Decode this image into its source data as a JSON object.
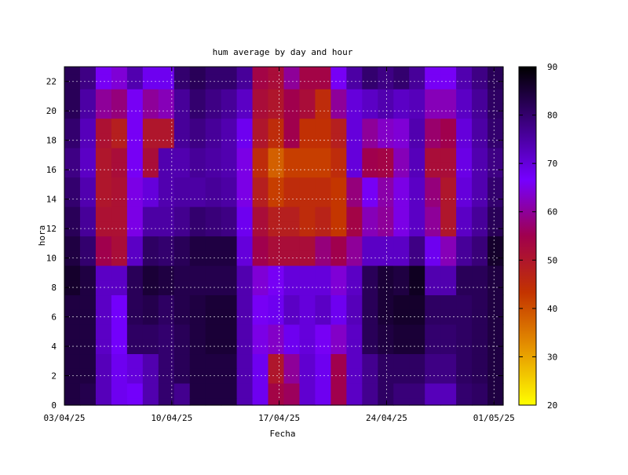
{
  "chart_data": {
    "type": "heatmap",
    "title": "hum average by day and hour",
    "xlabel": "Fecha",
    "ylabel": "hora",
    "x_start": "03/04/25",
    "x_end": "01/05/25",
    "x_tick_labels": [
      "03/04/25",
      "10/04/25",
      "17/04/25",
      "24/04/25",
      "01/05/25"
    ],
    "y_tick_labels": [
      "0",
      "2",
      "4",
      "6",
      "8",
      "10",
      "12",
      "14",
      "16",
      "18",
      "20",
      "22"
    ],
    "ylim": [
      0,
      23
    ],
    "grid": true,
    "colorbar": {
      "range": [
        20,
        90
      ],
      "tick_labels": [
        "20",
        "30",
        "40",
        "50",
        "60",
        "70",
        "80",
        "90"
      ],
      "palette": [
        "#ffff00",
        "#e69500",
        "#c33300",
        "#a0004d",
        "#7500ff",
        "#3c0080",
        "#000000"
      ]
    },
    "days": [
      "03/04",
      "04/04",
      "05/04",
      "06/04",
      "07/04",
      "08/04",
      "09/04",
      "10/04",
      "11/04",
      "12/04",
      "13/04",
      "14/04",
      "15/04",
      "16/04",
      "17/04",
      "18/04",
      "19/04",
      "20/04",
      "21/04",
      "22/04",
      "23/04",
      "24/04",
      "25/04",
      "26/04",
      "27/04",
      "28/04",
      "29/04",
      "30/04"
    ],
    "hours": [
      0,
      1,
      2,
      3,
      4,
      5,
      6,
      7,
      8,
      9,
      10,
      11,
      12,
      13,
      14,
      15,
      16,
      17,
      18,
      19,
      20,
      21,
      22,
      23
    ],
    "values": [
      [
        84,
        83,
        73,
        68,
        67,
        74,
        80,
        77,
        84,
        84,
        84,
        74,
        68,
        54,
        56,
        71,
        68,
        55,
        72,
        77,
        81,
        79,
        79,
        73,
        73,
        80,
        81,
        84
      ],
      [
        84,
        83,
        73,
        68,
        67,
        74,
        80,
        77,
        84,
        84,
        84,
        74,
        68,
        54,
        56,
        71,
        68,
        55,
        72,
        77,
        81,
        79,
        79,
        73,
        73,
        80,
        81,
        84
      ],
      [
        84,
        84,
        73,
        68,
        70,
        74,
        80,
        82,
        84,
        84,
        84,
        74,
        68,
        50,
        60,
        71,
        68,
        55,
        72,
        77,
        81,
        81,
        81,
        78,
        78,
        81,
        82,
        84
      ],
      [
        84,
        84,
        73,
        68,
        70,
        74,
        80,
        82,
        84,
        84,
        84,
        74,
        68,
        50,
        60,
        71,
        68,
        55,
        72,
        77,
        81,
        81,
        81,
        78,
        78,
        81,
        82,
        84
      ],
      [
        84,
        84,
        72,
        67,
        81,
        81,
        80,
        82,
        84,
        85,
        85,
        74,
        65,
        63,
        68,
        70,
        66,
        63,
        72,
        82,
        84,
        85,
        85,
        80,
        80,
        81,
        82,
        84
      ],
      [
        84,
        84,
        72,
        67,
        81,
        81,
        80,
        82,
        84,
        85,
        85,
        74,
        65,
        63,
        68,
        70,
        66,
        63,
        72,
        82,
        84,
        85,
        85,
        80,
        80,
        81,
        82,
        84
      ],
      [
        84,
        84,
        72,
        67,
        82,
        83,
        81,
        83,
        84,
        85,
        85,
        74,
        66,
        68,
        72,
        70,
        72,
        68,
        73,
        82,
        85,
        86,
        86,
        81,
        81,
        81,
        82,
        84
      ],
      [
        84,
        84,
        72,
        67,
        82,
        83,
        81,
        83,
        84,
        85,
        85,
        74,
        66,
        68,
        72,
        70,
        72,
        68,
        73,
        82,
        85,
        86,
        86,
        81,
        81,
        81,
        82,
        84
      ],
      [
        86,
        84,
        72,
        72,
        82,
        85,
        84,
        83,
        83,
        83,
        83,
        74,
        64,
        66,
        70,
        70,
        70,
        64,
        72,
        82,
        85,
        84,
        87,
        74,
        74,
        82,
        82,
        84
      ],
      [
        86,
        84,
        72,
        72,
        82,
        85,
        84,
        83,
        83,
        83,
        83,
        74,
        64,
        66,
        70,
        70,
        70,
        64,
        72,
        82,
        85,
        84,
        87,
        74,
        74,
        82,
        82,
        84
      ],
      [
        84,
        80,
        55,
        52,
        72,
        81,
        80,
        82,
        84,
        84,
        84,
        70,
        55,
        52,
        52,
        52,
        58,
        55,
        60,
        72,
        72,
        72,
        78,
        68,
        62,
        76,
        79,
        86
      ],
      [
        84,
        80,
        55,
        52,
        72,
        81,
        80,
        82,
        84,
        84,
        84,
        70,
        55,
        52,
        52,
        52,
        58,
        55,
        60,
        72,
        72,
        72,
        78,
        68,
        62,
        76,
        79,
        86
      ],
      [
        82,
        76,
        51,
        51,
        65,
        75,
        75,
        77,
        80,
        79,
        78,
        68,
        52,
        48,
        48,
        45,
        47,
        43,
        54,
        62,
        60,
        65,
        72,
        60,
        50,
        72,
        76,
        82
      ],
      [
        82,
        76,
        51,
        51,
        65,
        75,
        75,
        77,
        80,
        79,
        78,
        68,
        52,
        48,
        48,
        45,
        47,
        43,
        54,
        62,
        60,
        65,
        72,
        60,
        50,
        72,
        76,
        82
      ],
      [
        80,
        74,
        50,
        51,
        65,
        70,
        74,
        75,
        75,
        76,
        75,
        65,
        48,
        42,
        45,
        45,
        45,
        43,
        58,
        66,
        61,
        65,
        72,
        58,
        50,
        70,
        74,
        80
      ],
      [
        80,
        74,
        50,
        51,
        65,
        70,
        74,
        75,
        75,
        76,
        75,
        65,
        48,
        42,
        45,
        45,
        45,
        43,
        58,
        66,
        61,
        65,
        72,
        58,
        50,
        70,
        74,
        80
      ],
      [
        78,
        72,
        50,
        52,
        66,
        52,
        74,
        74,
        76,
        75,
        74,
        65,
        45,
        38,
        42,
        42,
        42,
        45,
        70,
        55,
        54,
        62,
        73,
        52,
        52,
        69,
        74,
        78
      ],
      [
        78,
        72,
        50,
        52,
        66,
        52,
        74,
        74,
        76,
        75,
        74,
        65,
        45,
        38,
        42,
        42,
        42,
        45,
        70,
        55,
        54,
        62,
        73,
        52,
        52,
        69,
        74,
        78
      ],
      [
        80,
        73,
        51,
        48,
        66,
        50,
        50,
        76,
        78,
        76,
        74,
        68,
        50,
        45,
        55,
        44,
        44,
        48,
        70,
        60,
        63,
        64,
        74,
        57,
        55,
        70,
        75,
        80
      ],
      [
        80,
        73,
        51,
        48,
        66,
        50,
        50,
        76,
        78,
        76,
        74,
        68,
        50,
        45,
        55,
        44,
        44,
        48,
        70,
        60,
        63,
        64,
        74,
        57,
        55,
        70,
        75,
        80
      ],
      [
        82,
        75,
        60,
        58,
        66,
        60,
        62,
        76,
        80,
        78,
        76,
        72,
        52,
        50,
        55,
        52,
        45,
        60,
        70,
        72,
        74,
        72,
        73,
        62,
        62,
        72,
        76,
        81
      ],
      [
        82,
        75,
        60,
        58,
        66,
        60,
        62,
        76,
        80,
        78,
        76,
        72,
        52,
        50,
        55,
        52,
        45,
        60,
        70,
        72,
        74,
        72,
        73,
        62,
        62,
        72,
        76,
        81
      ],
      [
        82,
        78,
        66,
        64,
        74,
        68,
        68,
        80,
        82,
        80,
        80,
        76,
        54,
        52,
        60,
        54,
        54,
        66,
        75,
        80,
        78,
        80,
        76,
        66,
        66,
        74,
        78,
        82
      ],
      [
        82,
        78,
        66,
        64,
        74,
        68,
        68,
        80,
        82,
        80,
        80,
        76,
        54,
        52,
        60,
        54,
        54,
        66,
        75,
        80,
        78,
        80,
        76,
        66,
        66,
        74,
        78,
        82
      ]
    ]
  }
}
